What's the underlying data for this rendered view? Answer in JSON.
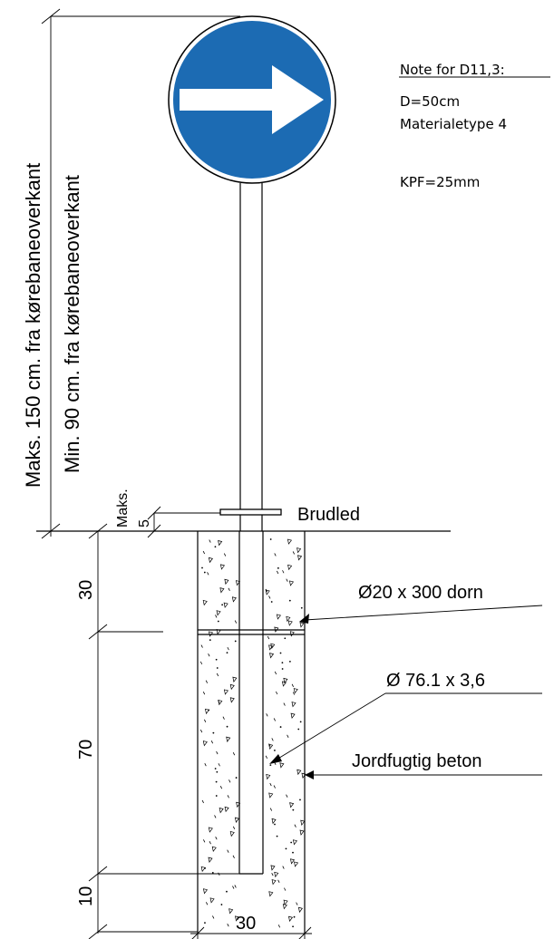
{
  "vertical_labels": {
    "max_height": "Maks. 150 cm. fra kørebaneoverkant",
    "min_height": "Min. 90 cm. fra kørebaneoverkant",
    "maks": "Maks.",
    "maks_value": "5"
  },
  "note": {
    "title": "Note for D11,3:",
    "lines": [
      "D=50cm",
      "Materialetype 4",
      "KPF=25mm"
    ]
  },
  "labels": {
    "brudled": "Brudled",
    "dorn": "Ø20 x 300 dorn",
    "pipe": "Ø 76.1 x 3,6",
    "concrete": "Jordfugtig beton"
  },
  "dimensions": {
    "depth_top": "30",
    "depth_mid": "70",
    "depth_bottom": "10",
    "width": "30"
  },
  "colors": {
    "sign_blue": "#1c6bb3",
    "line": "#000000",
    "arrow": "#ffffff"
  },
  "icons": {
    "sign_symbol": "right-arrow-icon"
  }
}
